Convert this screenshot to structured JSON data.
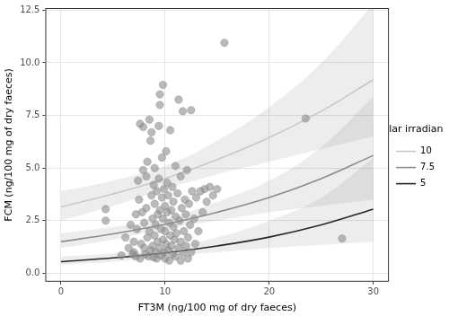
{
  "chart_data": {
    "type": "scatter",
    "x_label": "FT3M (ng/100 mg of dry faeces)",
    "y_label": "FCM (ng/100 mg of dry faeces)",
    "color": "#8c8c8c",
    "x": [
      4.3,
      4.3,
      5.8,
      6.5,
      6.7,
      7.0,
      7.0,
      7.2,
      7.2,
      7.3,
      7.4,
      7.5,
      7.6,
      7.6,
      7.7,
      7.8,
      7.9,
      7.9,
      8.0,
      8.0,
      8.1,
      8.2,
      8.2,
      8.3,
      8.3,
      8.4,
      8.5,
      8.5,
      8.6,
      8.6,
      8.7,
      8.7,
      8.8,
      8.8,
      8.9,
      8.9,
      9.0,
      9.0,
      9.0,
      9.1,
      9.1,
      9.2,
      9.2,
      9.3,
      9.3,
      9.4,
      9.4,
      9.5,
      9.5,
      9.5,
      9.5,
      9.6,
      9.6,
      9.7,
      9.7,
      9.8,
      9.8,
      9.8,
      9.9,
      9.9,
      10.0,
      10.0,
      10.0,
      10.1,
      10.1,
      10.2,
      10.2,
      10.3,
      10.3,
      10.4,
      10.4,
      10.5,
      10.5,
      10.6,
      10.6,
      10.7,
      10.7,
      10.8,
      10.8,
      10.9,
      11.0,
      11.0,
      11.0,
      11.1,
      11.2,
      11.3,
      11.3,
      11.4,
      11.5,
      11.5,
      11.6,
      11.7,
      11.7,
      11.8,
      11.9,
      12.0,
      12.0,
      12.1,
      12.2,
      12.3,
      12.4,
      12.5,
      12.5,
      12.6,
      12.8,
      12.9,
      13.0,
      13.2,
      13.4,
      13.6,
      13.8,
      14.0,
      14.3,
      14.6,
      15.0,
      15.7,
      23.5,
      27.0,
      6.2,
      6.9,
      12.2,
      11.5
    ],
    "values": [
      3.05,
      2.5,
      0.85,
      1.2,
      2.3,
      1.0,
      1.5,
      0.8,
      2.8,
      2.1,
      4.4,
      3.5,
      7.1,
      0.7,
      1.4,
      2.9,
      6.95,
      4.9,
      1.2,
      2.4,
      0.9,
      3.1,
      4.6,
      1.7,
      5.3,
      0.8,
      7.3,
      2.0,
      6.3,
      1.1,
      6.7,
      3.7,
      2.6,
      1.3,
      4.2,
      0.75,
      5.0,
      3.3,
      1.8,
      2.3,
      1.0,
      3.9,
      0.7,
      2.8,
      1.5,
      7.0,
      4.5,
      8.5,
      8.0,
      3.0,
      1.2,
      2.1,
      0.85,
      3.6,
      5.5,
      8.95,
      1.6,
      2.6,
      4.0,
      1.0,
      3.2,
      0.7,
      2.0,
      5.8,
      1.4,
      2.9,
      4.3,
      1.1,
      3.7,
      0.6,
      2.4,
      1.8,
      6.8,
      3.0,
      1.3,
      4.1,
      0.9,
      2.2,
      3.4,
      1.6,
      5.1,
      2.7,
      0.8,
      1.9,
      3.8,
      8.25,
      1.2,
      2.5,
      4.6,
      1.5,
      3.1,
      7.7,
      0.95,
      2.0,
      3.5,
      1.3,
      2.8,
      4.9,
      1.7,
      3.3,
      2.3,
      7.75,
      1.0,
      3.9,
      2.6,
      1.4,
      3.6,
      2.0,
      3.9,
      2.9,
      4.0,
      3.4,
      4.1,
      3.7,
      4.0,
      10.95,
      7.35,
      1.65,
      1.7,
      0.9,
      0.7,
      0.6
    ],
    "series": [
      {
        "name": "10",
        "color": "#c8c8c8",
        "x": [
          0,
          5,
          10,
          15,
          20,
          25,
          30
        ],
        "values": [
          3.15,
          3.77,
          4.5,
          5.4,
          6.45,
          7.7,
          9.2
        ],
        "lower": [
          2.5,
          3.2,
          4.0,
          4.7,
          5.3,
          5.9,
          6.5
        ],
        "upper": [
          3.9,
          4.4,
          5.1,
          6.3,
          7.9,
          10.0,
          12.8
        ]
      },
      {
        "name": "7.5",
        "color": "#8c8c8c",
        "x": [
          0,
          5,
          10,
          15,
          20,
          25,
          30
        ],
        "values": [
          1.5,
          1.87,
          2.33,
          2.9,
          3.6,
          4.5,
          5.6
        ],
        "lower": [
          1.2,
          1.6,
          2.1,
          2.5,
          2.9,
          3.2,
          3.5
        ],
        "upper": [
          1.9,
          2.2,
          2.6,
          3.4,
          4.4,
          6.0,
          8.4
        ]
      },
      {
        "name": "5",
        "color": "#262626",
        "x": [
          0,
          5,
          10,
          15,
          20,
          25,
          30
        ],
        "values": [
          0.55,
          0.73,
          0.97,
          1.3,
          1.72,
          2.3,
          3.05
        ],
        "lower": [
          0.4,
          0.55,
          0.8,
          1.0,
          1.2,
          1.35,
          1.5
        ],
        "upper": [
          0.8,
          0.95,
          1.2,
          1.7,
          2.5,
          3.6,
          5.5
        ]
      }
    ],
    "legend": "right",
    "legend_title": "solar irradiance",
    "xlim": [
      -1.5,
      31.5
    ],
    "ylim": [
      -0.4,
      12.6
    ],
    "xticks": [
      0,
      10,
      20,
      30
    ],
    "yticks": [
      {
        "value": 0,
        "label": "0.0"
      },
      {
        "value": 2.5,
        "label": "2.5"
      },
      {
        "value": 5,
        "label": "5.0"
      },
      {
        "value": 7.5,
        "label": "7.5"
      },
      {
        "value": 10,
        "label": "10.0"
      },
      {
        "value": 12.5,
        "label": "12.5"
      }
    ],
    "grid": true
  }
}
